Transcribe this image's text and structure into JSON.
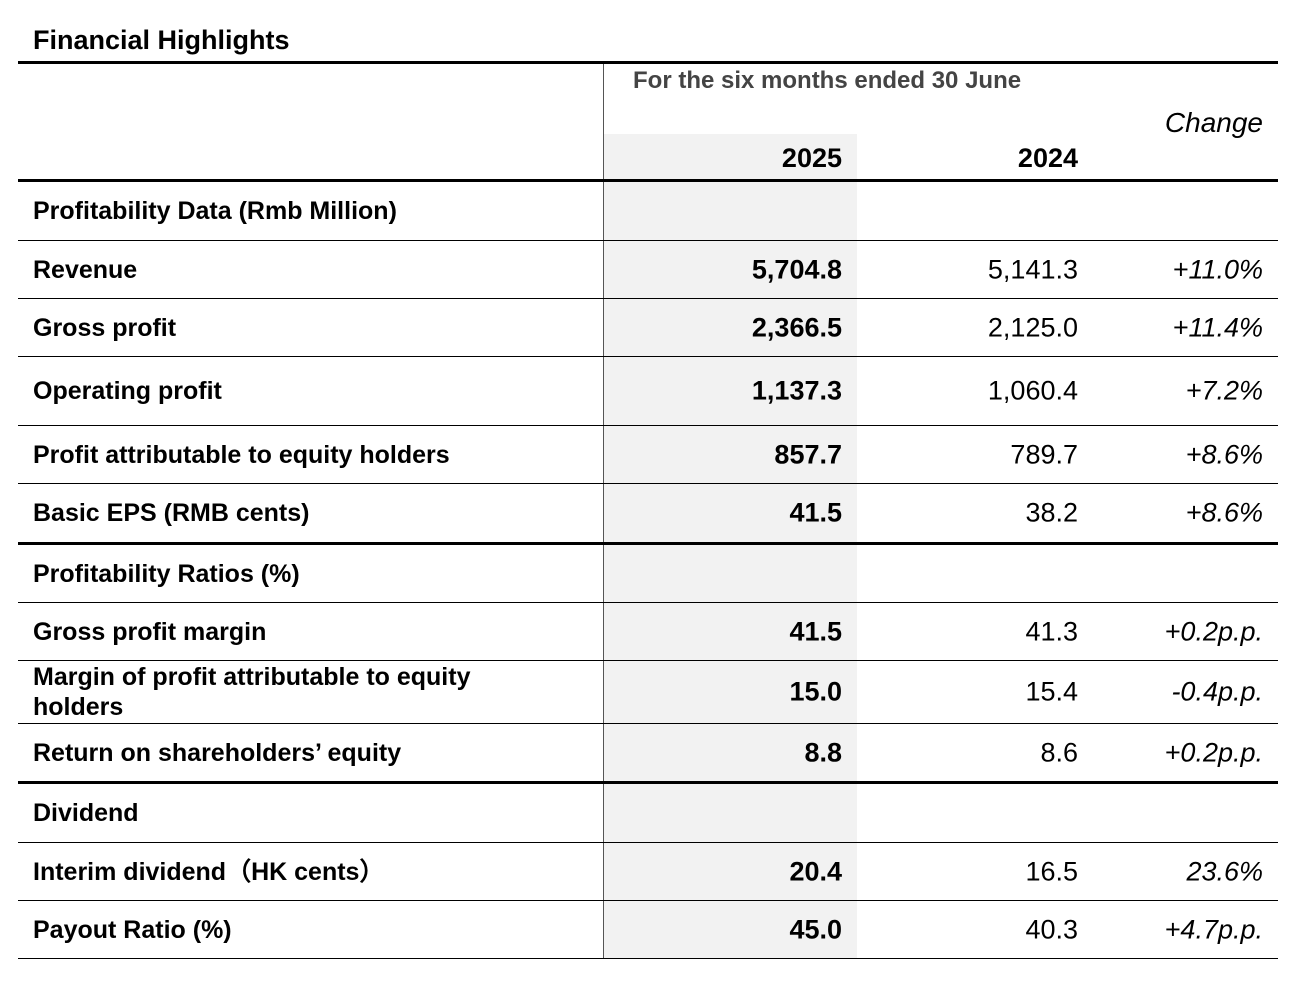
{
  "title": "Financial Highlights",
  "header": {
    "period": "For the six months ended 30 June",
    "change": "Change",
    "year_current": "2025",
    "year_prior": "2024"
  },
  "sections": [
    {
      "heading": "Profitability Data (Rmb Million)"
    },
    {
      "rows": [
        {
          "label": "Revenue",
          "current": "5,704.8",
          "prior": "5,141.3",
          "change": "+11.0%"
        },
        {
          "label": "Gross profit",
          "current": "2,366.5",
          "prior": "2,125.0",
          "change": "+11.4%"
        },
        {
          "label": "Operating profit",
          "current": "1,137.3",
          "prior": "1,060.4",
          "change": "+7.2%"
        },
        {
          "label": "Profit attributable to equity holders",
          "current": "857.7",
          "prior": "789.7",
          "change": "+8.6%"
        },
        {
          "label": "Basic EPS (RMB cents)",
          "current": "41.5",
          "prior": "38.2",
          "change": "+8.6%"
        }
      ]
    },
    {
      "heading": "Profitability Ratios (%)"
    },
    {
      "rows": [
        {
          "label": "Gross profit margin",
          "current": "41.5",
          "prior": "41.3",
          "change": "+0.2p.p."
        },
        {
          "label": "Margin of profit attributable to equity holders",
          "current": "15.0",
          "prior": "15.4",
          "change": "-0.4p.p."
        },
        {
          "label": "Return on shareholders’ equity",
          "current": "8.8",
          "prior": "8.6",
          "change": "+0.2p.p."
        }
      ]
    },
    {
      "heading": "Dividend"
    },
    {
      "rows": [
        {
          "label": "Interim dividend（HK cents）",
          "current": "20.4",
          "prior": "16.5",
          "change": "23.6%"
        },
        {
          "label": "Payout Ratio (%)",
          "current": "45.0",
          "prior": "40.3",
          "change": "+4.7p.p."
        }
      ]
    }
  ]
}
